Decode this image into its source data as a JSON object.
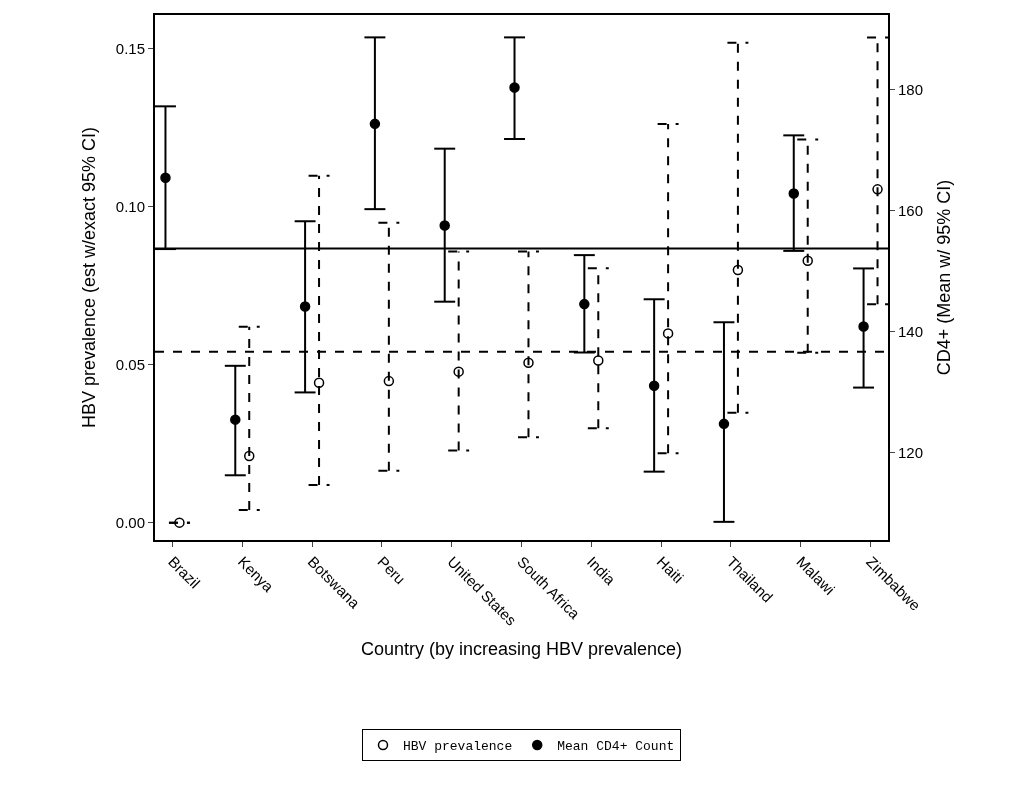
{
  "chart_data": {
    "type": "scatter",
    "xlabel": "Country (by increasing HBV prevalence)",
    "ylabel": "HBV prevalence (est w/exact 95% CI)",
    "y2label": "CD4+ (Mean w/ 95% CI)",
    "categories": [
      "Brazil",
      "Kenya",
      "Botswana",
      "Peru",
      "United States",
      "South Africa",
      "India",
      "Haiti",
      "Thailand",
      "Malawi",
      "Zimbabwe"
    ],
    "series": [
      {
        "name": "HBV prevalence",
        "color": "#000000",
        "marker": "circle",
        "line_style": "dashed",
        "values": [
          0.0,
          0.0211,
          0.0443,
          0.0448,
          0.0478,
          0.0506,
          0.0513,
          0.0599,
          0.08,
          0.0829,
          0.1055
        ],
        "errors": [
          [
            0.0,
            0.0
          ],
          [
            0.004,
            0.062
          ],
          [
            0.0119,
            0.1098
          ],
          [
            0.0164,
            0.0949
          ],
          [
            0.0228,
            0.0858
          ],
          [
            0.027,
            0.0858
          ],
          [
            0.0299,
            0.0805
          ],
          [
            0.022,
            0.1262
          ],
          [
            0.0348,
            0.1519
          ],
          [
            0.0538,
            0.1213
          ],
          [
            0.0691,
            0.1536
          ]
        ]
      },
      {
        "name": "Mean CD4+ Count",
        "color": "#000000",
        "marker": "circle",
        "line_style": "solid",
        "axis": "y2",
        "values": [
          165.4,
          125.4,
          144.1,
          174.3,
          157.5,
          180.3,
          144.5,
          131.0,
          124.7,
          162.8,
          140.8
        ],
        "errors": [
          [
            153.6,
            177.2
          ],
          [
            116.2,
            134.3
          ],
          [
            129.9,
            158.2
          ],
          [
            160.2,
            188.6
          ],
          [
            144.9,
            170.2
          ],
          [
            171.8,
            188.6
          ],
          [
            136.5,
            152.6
          ],
          [
            116.8,
            145.3
          ],
          [
            108.5,
            141.5
          ],
          [
            153.3,
            172.4
          ],
          [
            130.7,
            150.4
          ]
        ]
      }
    ],
    "ref_lines": [
      {
        "axis": "y",
        "value": 0.0541,
        "line_style": "dashed",
        "color": "#000000"
      },
      {
        "axis": "y2",
        "value": 153.7,
        "line_style": "solid",
        "color": "#000000"
      }
    ],
    "ylim": [
      -0.0055,
      0.1607
    ],
    "yticks": [
      {
        "value": 0,
        "label": "0.00"
      },
      {
        "value": 0.05,
        "label": "0.05"
      },
      {
        "value": 0.1,
        "label": "0.10"
      },
      {
        "value": 0.15,
        "label": "0.15"
      }
    ],
    "y2lim": [
      105.5,
      192.3
    ],
    "y2ticks": [
      120,
      140,
      160,
      180
    ],
    "legend": "bottom"
  }
}
